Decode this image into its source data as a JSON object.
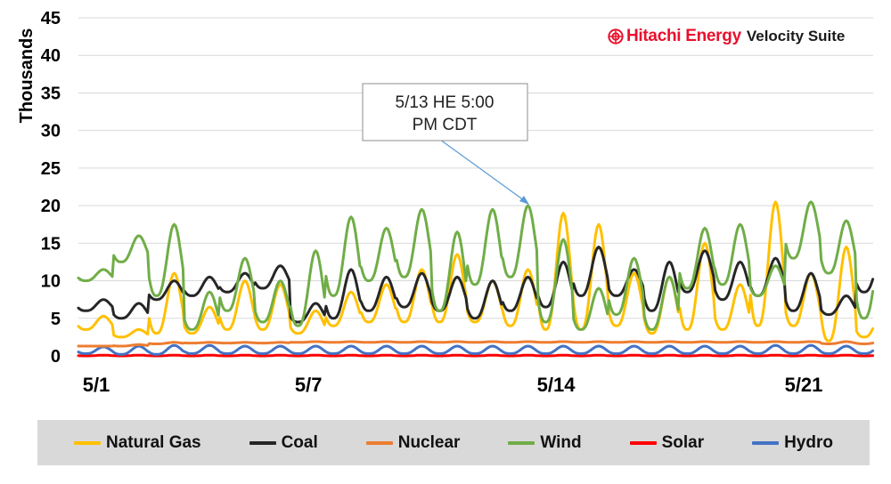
{
  "brand": {
    "name": "Hitachi Energy",
    "suite": "Velocity Suite",
    "color": "#e8112d"
  },
  "annotation": {
    "line1": "5/13 HE 5:00",
    "line2": "PM CDT"
  },
  "chart_data": {
    "type": "line",
    "ylabel": "Thousands",
    "ylim": [
      0,
      45
    ],
    "yticks": [
      0,
      5,
      10,
      15,
      20,
      25,
      30,
      35,
      40,
      45
    ],
    "xlim": [
      "5/1",
      "5/23"
    ],
    "x_start": "5/1",
    "xticks": [
      "5/1",
      "5/7",
      "5/14",
      "5/21"
    ],
    "grid": "horizontal",
    "legend_position": "bottom",
    "series": [
      {
        "name": "Natural Gas",
        "color": "#ffc000",
        "daily_peaks": [
          5.3,
          3.5,
          11.0,
          6.5,
          10.0,
          9.5,
          6.0,
          8.5,
          9.5,
          11.5,
          13.5,
          10.0,
          11.5,
          19.0,
          17.5,
          11.0,
          10.5,
          15.0,
          9.5,
          20.5,
          11.0,
          14.5,
          5.5
        ],
        "daily_mins": [
          3.5,
          2.5,
          3.0,
          3.0,
          3.5,
          3.5,
          3.0,
          4.0,
          4.5,
          4.5,
          4.5,
          4.5,
          4.0,
          3.5,
          3.5,
          4.0,
          3.0,
          3.5,
          3.5,
          4.0,
          4.0,
          2.0,
          2.5
        ]
      },
      {
        "name": "Coal",
        "color": "#262626",
        "daily_peaks": [
          7.5,
          7.0,
          10.0,
          10.5,
          11.0,
          12.0,
          7.0,
          11.5,
          10.5,
          11.0,
          10.5,
          10.0,
          10.5,
          12.5,
          14.5,
          11.5,
          12.5,
          14.0,
          12.5,
          13.0,
          11.0,
          8.0,
          13.0
        ],
        "daily_mins": [
          6.0,
          5.0,
          7.5,
          8.0,
          8.5,
          9.0,
          4.5,
          5.0,
          6.0,
          6.5,
          6.0,
          5.0,
          6.0,
          6.5,
          8.0,
          8.0,
          6.0,
          8.5,
          7.5,
          8.0,
          6.0,
          5.5,
          8.5
        ]
      },
      {
        "name": "Nuclear",
        "color": "#ed7d31",
        "daily_peaks": [
          1.3,
          1.5,
          1.8,
          1.8,
          1.8,
          1.8,
          1.9,
          1.9,
          1.9,
          1.9,
          1.9,
          1.9,
          1.9,
          1.9,
          1.9,
          1.9,
          1.9,
          1.9,
          1.9,
          1.9,
          1.9,
          1.9,
          1.9
        ],
        "daily_mins": [
          1.3,
          1.3,
          1.6,
          1.7,
          1.7,
          1.7,
          1.8,
          1.8,
          1.8,
          1.8,
          1.8,
          1.8,
          1.8,
          1.8,
          1.8,
          1.8,
          1.8,
          1.8,
          1.8,
          1.8,
          1.8,
          1.6,
          1.6
        ]
      },
      {
        "name": "Wind",
        "color": "#70ad47",
        "daily_peaks": [
          11.5,
          16.0,
          17.5,
          8.5,
          13.0,
          10.0,
          14.0,
          18.5,
          17.0,
          19.5,
          16.5,
          19.5,
          20.0,
          15.5,
          9.0,
          13.0,
          10.5,
          17.0,
          17.5,
          12.0,
          20.5,
          18.0,
          14.5
        ],
        "daily_mins": [
          10.0,
          12.5,
          8.0,
          3.5,
          6.0,
          4.5,
          4.0,
          8.0,
          10.0,
          10.5,
          6.0,
          9.5,
          10.5,
          4.5,
          3.5,
          5.5,
          3.5,
          9.0,
          9.5,
          8.0,
          13.0,
          11.0,
          5.0
        ]
      },
      {
        "name": "Solar",
        "color": "#ff0000",
        "daily_peaks": [
          0.1,
          0.1,
          0.1,
          0.1,
          0.1,
          0.1,
          0.1,
          0.1,
          0.1,
          0.1,
          0.1,
          0.1,
          0.1,
          0.1,
          0.1,
          0.1,
          0.1,
          0.1,
          0.1,
          0.1,
          0.1,
          0.1,
          0.1
        ],
        "daily_mins": [
          0.0,
          0.0,
          0.0,
          0.0,
          0.0,
          0.0,
          0.0,
          0.0,
          0.0,
          0.0,
          0.0,
          0.0,
          0.0,
          0.0,
          0.0,
          0.0,
          0.0,
          0.0,
          0.0,
          0.0,
          0.0,
          0.0,
          0.0
        ]
      },
      {
        "name": "Hydro",
        "color": "#4472c4",
        "daily_peaks": [
          1.2,
          1.3,
          1.4,
          1.4,
          1.3,
          1.3,
          1.3,
          1.3,
          1.3,
          1.3,
          1.3,
          1.3,
          1.3,
          1.3,
          1.3,
          1.3,
          1.3,
          1.3,
          1.3,
          1.4,
          1.4,
          1.3,
          1.3
        ],
        "daily_mins": [
          0.3,
          0.2,
          0.2,
          0.3,
          0.3,
          0.3,
          0.3,
          0.3,
          0.3,
          0.3,
          0.3,
          0.3,
          0.3,
          0.3,
          0.3,
          0.3,
          0.3,
          0.3,
          0.3,
          0.3,
          0.3,
          0.3,
          0.3
        ]
      }
    ]
  }
}
